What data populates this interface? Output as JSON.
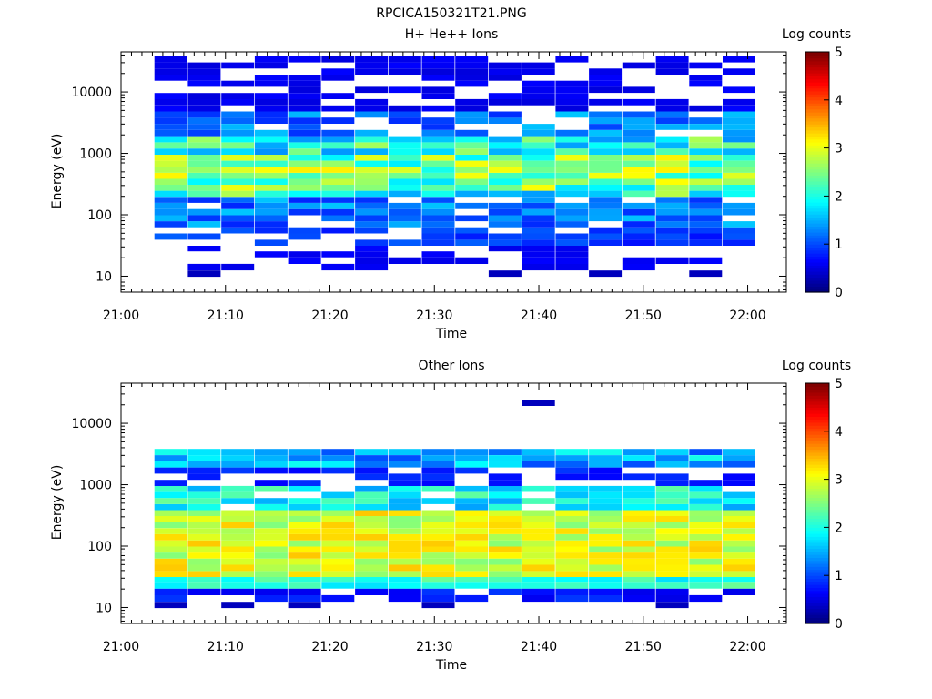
{
  "figure": {
    "title": "RPCICA150321T21.PNG"
  },
  "chart_data": [
    {
      "type": "heatmap",
      "title": "H+ He++ Ions",
      "xlabel": "Time",
      "ylabel": "Energy (eV)",
      "x_tick_labels": [
        "21:00",
        "21:10",
        "21:20",
        "21:30",
        "21:40",
        "21:50",
        "22:00"
      ],
      "x_range_minutes": [
        0,
        63.7
      ],
      "y_scale": "log",
      "y_range": [
        5.5,
        45000
      ],
      "y_tick_labels": [
        "10",
        "100",
        "1000",
        "10000"
      ],
      "colorbar": {
        "label": "Log counts",
        "range": [
          0,
          5
        ],
        "tick_labels": [
          "0",
          "1",
          "2",
          "3",
          "4",
          "5"
        ]
      },
      "time_columns_min": [
        3.2,
        6.4,
        9.6,
        12.8,
        16.0,
        19.2,
        22.4,
        25.6,
        28.8,
        32.0,
        35.2,
        38.4,
        41.6,
        44.8,
        48.0,
        51.2,
        54.4,
        57.6
      ],
      "energy_bins_eV": [
        11,
        14,
        18,
        23,
        28,
        35,
        44,
        56,
        70,
        88,
        110,
        140,
        175,
        220,
        275,
        345,
        430,
        540,
        680,
        850,
        1070,
        1350,
        1700,
        2150,
        2700,
        3400,
        4300,
        5400,
        6800,
        8600,
        10800,
        13600,
        17100,
        21500,
        27000,
        34000
      ]
    },
    {
      "type": "heatmap",
      "title": "Other Ions",
      "xlabel": "Time",
      "ylabel": "Energy (eV)",
      "x_tick_labels": [
        "21:00",
        "21:10",
        "21:20",
        "21:30",
        "21:40",
        "21:50",
        "22:00"
      ],
      "x_range_minutes": [
        0,
        63.7
      ],
      "y_scale": "log",
      "y_range": [
        5.5,
        45000
      ],
      "y_tick_labels": [
        "10",
        "100",
        "1000",
        "10000"
      ],
      "colorbar": {
        "label": "Log counts",
        "range": [
          0,
          5
        ],
        "tick_labels": [
          "0",
          "1",
          "2",
          "3",
          "4",
          "5"
        ]
      },
      "time_columns_min": [
        3.2,
        6.4,
        9.6,
        12.8,
        16.0,
        19.2,
        22.4,
        25.6,
        28.8,
        32.0,
        35.2,
        38.4,
        41.6,
        44.8,
        48.0,
        51.2,
        54.4,
        57.6
      ],
      "energy_bins_eV": [
        11,
        14,
        18,
        23,
        28,
        35,
        44,
        56,
        70,
        88,
        110,
        140,
        175,
        220,
        275,
        345,
        430,
        540,
        680,
        850,
        1070,
        1350,
        1700,
        2150,
        2700,
        3400,
        4300,
        5400,
        6800,
        8600,
        10800,
        13600,
        17100,
        21500,
        27000,
        34000
      ]
    }
  ]
}
